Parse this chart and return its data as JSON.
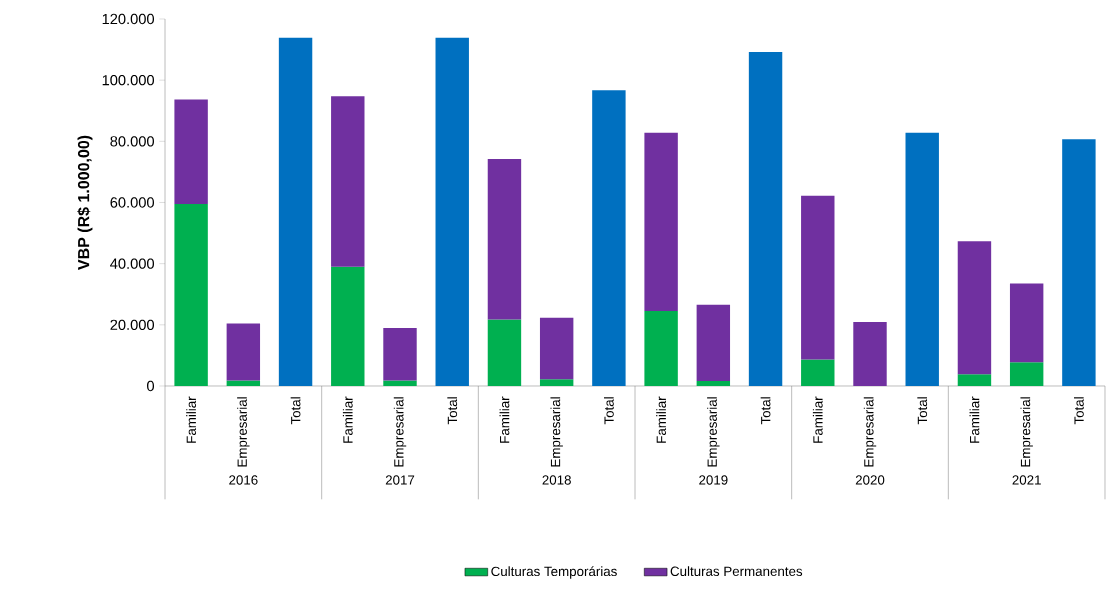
{
  "chart_data": {
    "type": "bar",
    "stacked": true,
    "ylabel": "VBP (R$ 1.000,00)",
    "categories": [
      "Familiar",
      "Empresarial",
      "Total",
      "Familiar",
      "Empresarial",
      "Total",
      "Familiar",
      "Empresarial",
      "Total",
      "Familiar",
      "Empresarial",
      "Total",
      "Familiar",
      "Empresarial",
      "Total",
      "Familiar",
      "Empresarial",
      "Total"
    ],
    "annotations": [
      "2016",
      "2017",
      "2018",
      "2019",
      "2020",
      "2021"
    ],
    "series": [
      {
        "name": "Culturas Temporárias",
        "color": "#00b050",
        "values": [
          59500,
          1800,
          null,
          39000,
          1800,
          null,
          21700,
          2200,
          null,
          24500,
          1600,
          null,
          8700,
          0,
          null,
          3800,
          7800,
          null
        ]
      },
      {
        "name": "Culturas Permanentes",
        "color": "#7030a0",
        "values": [
          34200,
          18600,
          null,
          55700,
          17200,
          null,
          52500,
          20100,
          null,
          58300,
          25000,
          null,
          53500,
          20900,
          null,
          43500,
          25700,
          null
        ]
      },
      {
        "color": "#0070c0",
        "values": [
          null,
          null,
          113900,
          null,
          null,
          113900,
          null,
          null,
          96700,
          null,
          null,
          109200,
          null,
          null,
          82800,
          null,
          null,
          80700
        ]
      }
    ],
    "ylim": [
      0,
      120000
    ],
    "yticks": [
      {
        "value": 0,
        "label": "0"
      },
      {
        "value": 20000,
        "label": "20.000"
      },
      {
        "value": 40000,
        "label": "40.000"
      },
      {
        "value": 60000,
        "label": "60.000"
      },
      {
        "value": 80000,
        "label": "80.000"
      },
      {
        "value": 100000,
        "label": "100.000"
      },
      {
        "value": 120000,
        "label": "120.000"
      }
    ],
    "grid": false,
    "legend": "bottom"
  }
}
